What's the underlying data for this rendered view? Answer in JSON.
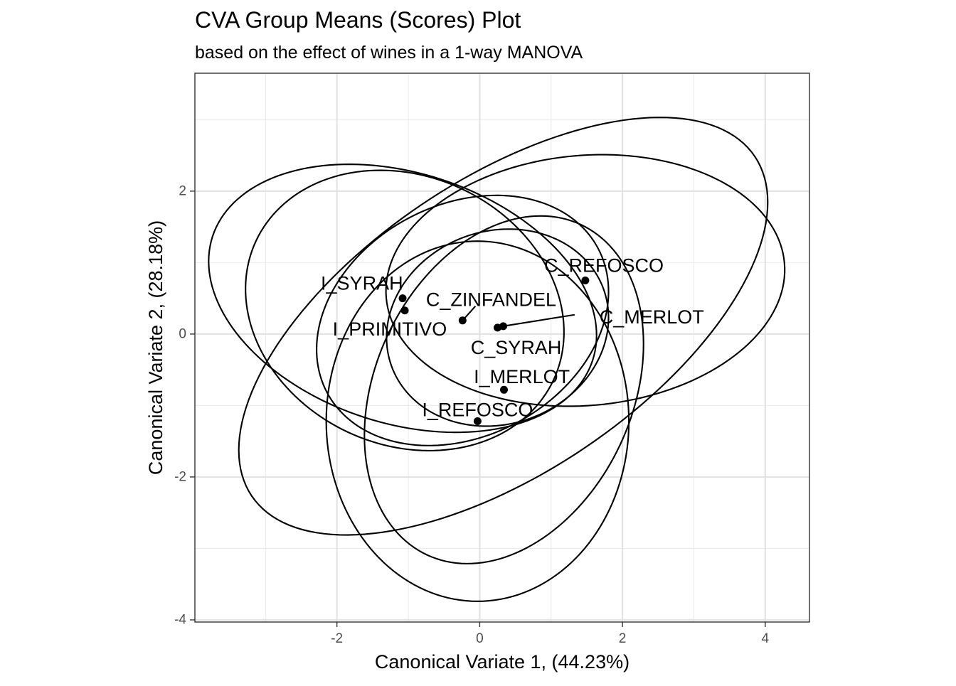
{
  "chart_data": {
    "type": "scatter",
    "title": "CVA Group Means (Scores) Plot",
    "subtitle": "based on the effect of wines in a 1-way MANOVA",
    "xlabel": "Canonical Variate 1, (44.23%)",
    "ylabel": "Canonical Variate 2, (28.18%)",
    "xlim": [
      -3.99,
      4.62
    ],
    "ylim": [
      -4.03,
      3.65
    ],
    "x_ticks": [
      -2,
      0,
      2,
      4
    ],
    "x_tick_labels": [
      "-2",
      "0",
      "2",
      "4"
    ],
    "y_ticks": [
      -4,
      -2,
      0,
      2
    ],
    "y_tick_labels": [
      "-4",
      "-2",
      "0",
      "2"
    ],
    "x_minor_ticks": [
      -3,
      -1,
      1,
      3
    ],
    "y_minor_ticks": [
      -3,
      -1,
      1,
      3
    ],
    "grid": true,
    "legend": "none",
    "points": [
      {
        "label": "C_REFOSCO",
        "x": 1.48,
        "y": 0.75
      },
      {
        "label": "I_SYRAH",
        "x": -1.08,
        "y": 0.5
      },
      {
        "label": "I_PRIMITIVO",
        "x": -1.05,
        "y": 0.33
      },
      {
        "label": "C_ZINFANDEL",
        "x": -0.24,
        "y": 0.19
      },
      {
        "label": "C_SYRAH",
        "x": 0.25,
        "y": 0.09
      },
      {
        "label": "C_MERLOT",
        "x": 0.33,
        "y": 0.11
      },
      {
        "label": "I_MERLOT",
        "x": 0.34,
        "y": -0.78
      },
      {
        "label": "I_REFOSCO",
        "x": -0.03,
        "y": -1.22
      }
    ],
    "confidence_ellipses": [
      {
        "group": "C_MERLOT",
        "cx": 0.33,
        "cy": 0.11,
        "rx": 4.25,
        "ry": 2.05,
        "angle_deg": 34
      },
      {
        "group": "I_SYRAH",
        "cx": -1.08,
        "cy": 0.5,
        "rx": 2.8,
        "ry": 1.75,
        "angle_deg": -18
      },
      {
        "group": "I_PRIMITIVO",
        "cx": -1.05,
        "cy": 0.33,
        "rx": 2.3,
        "ry": 1.88,
        "angle_deg": -25
      },
      {
        "group": "C_ZINFANDEL",
        "cx": -0.24,
        "cy": 0.19,
        "rx": 2.15,
        "ry": 1.62,
        "angle_deg": 28
      },
      {
        "group": "C_REFOSCO",
        "cx": 1.48,
        "cy": 0.75,
        "rx": 2.8,
        "ry": 1.75,
        "angle_deg": 5
      },
      {
        "group": "C_SYRAH",
        "cx": 0.25,
        "cy": 0.09,
        "rx": 1.58,
        "ry": 1.35,
        "angle_deg": 20
      },
      {
        "group": "I_MERLOT",
        "cx": 0.34,
        "cy": -0.78,
        "rx": 2.55,
        "ry": 1.8,
        "angle_deg": 65
      },
      {
        "group": "I_REFOSCO",
        "cx": -0.03,
        "cy": -1.22,
        "rx": 2.52,
        "ry": 2.12,
        "angle_deg": 90
      }
    ],
    "labels": [
      {
        "text": "C_REFOSCO",
        "x": 1.74,
        "y": 0.96,
        "point_x": 1.48,
        "point_y": 0.75,
        "leader": false
      },
      {
        "text": "I_SYRAH",
        "x": -1.65,
        "y": 0.71,
        "point_x": -1.08,
        "point_y": 0.5,
        "leader": false
      },
      {
        "text": "C_ZINFANDEL",
        "x": 0.16,
        "y": 0.48,
        "point_x": -0.24,
        "point_y": 0.19,
        "leader": true
      },
      {
        "text": "C_MERLOT",
        "x": 2.41,
        "y": 0.24,
        "point_x": 0.33,
        "point_y": 0.11,
        "leader": true
      },
      {
        "text": "I_PRIMITIVO",
        "x": -1.26,
        "y": 0.07,
        "point_x": -1.05,
        "point_y": 0.33,
        "leader": false
      },
      {
        "text": "C_SYRAH",
        "x": 0.51,
        "y": -0.19,
        "point_x": 0.25,
        "point_y": 0.09,
        "leader": false
      },
      {
        "text": "I_MERLOT",
        "x": 0.59,
        "y": -0.6,
        "point_x": 0.34,
        "point_y": -0.78,
        "leader": false
      },
      {
        "text": "I_REFOSCO",
        "x": -0.03,
        "y": -1.06,
        "point_x": -0.03,
        "point_y": -1.22,
        "leader": false
      }
    ]
  }
}
